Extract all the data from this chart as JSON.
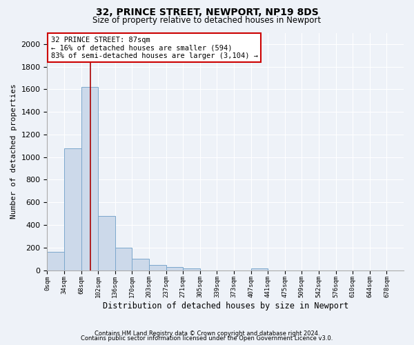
{
  "title1": "32, PRINCE STREET, NEWPORT, NP19 8DS",
  "title2": "Size of property relative to detached houses in Newport",
  "xlabel": "Distribution of detached houses by size in Newport",
  "ylabel": "Number of detached properties",
  "bin_labels": [
    "0sqm",
    "34sqm",
    "68sqm",
    "102sqm",
    "136sqm",
    "170sqm",
    "203sqm",
    "237sqm",
    "271sqm",
    "305sqm",
    "339sqm",
    "373sqm",
    "407sqm",
    "441sqm",
    "475sqm",
    "509sqm",
    "542sqm",
    "576sqm",
    "610sqm",
    "644sqm",
    "678sqm"
  ],
  "bar_heights": [
    165,
    1080,
    1620,
    480,
    200,
    100,
    45,
    30,
    18,
    0,
    0,
    0,
    18,
    0,
    0,
    0,
    0,
    0,
    0,
    0,
    0
  ],
  "bar_color": "#ccd9ea",
  "bar_edge_color": "#7ba7cc",
  "bin_width": 34,
  "ylim": [
    0,
    2100
  ],
  "yticks": [
    0,
    200,
    400,
    600,
    800,
    1000,
    1200,
    1400,
    1600,
    1800,
    2000
  ],
  "property_size": 87,
  "annotation_text_line1": "32 PRINCE STREET: 87sqm",
  "annotation_text_line2": "← 16% of detached houses are smaller (594)",
  "annotation_text_line3": "83% of semi-detached houses are larger (3,104) →",
  "annotation_box_facecolor": "#ffffff",
  "annotation_box_edgecolor": "#cc0000",
  "marker_line_color": "#aa0000",
  "footnote1": "Contains HM Land Registry data © Crown copyright and database right 2024.",
  "footnote2": "Contains public sector information licensed under the Open Government Licence v3.0.",
  "bg_color": "#eef2f8",
  "grid_color": "#ffffff",
  "title1_fontsize": 10,
  "title2_fontsize": 8.5,
  "ylabel_fontsize": 8,
  "xlabel_fontsize": 8.5,
  "ytick_fontsize": 8,
  "xtick_fontsize": 6.5,
  "footnote_fontsize": 6,
  "ann_fontsize": 7.5
}
